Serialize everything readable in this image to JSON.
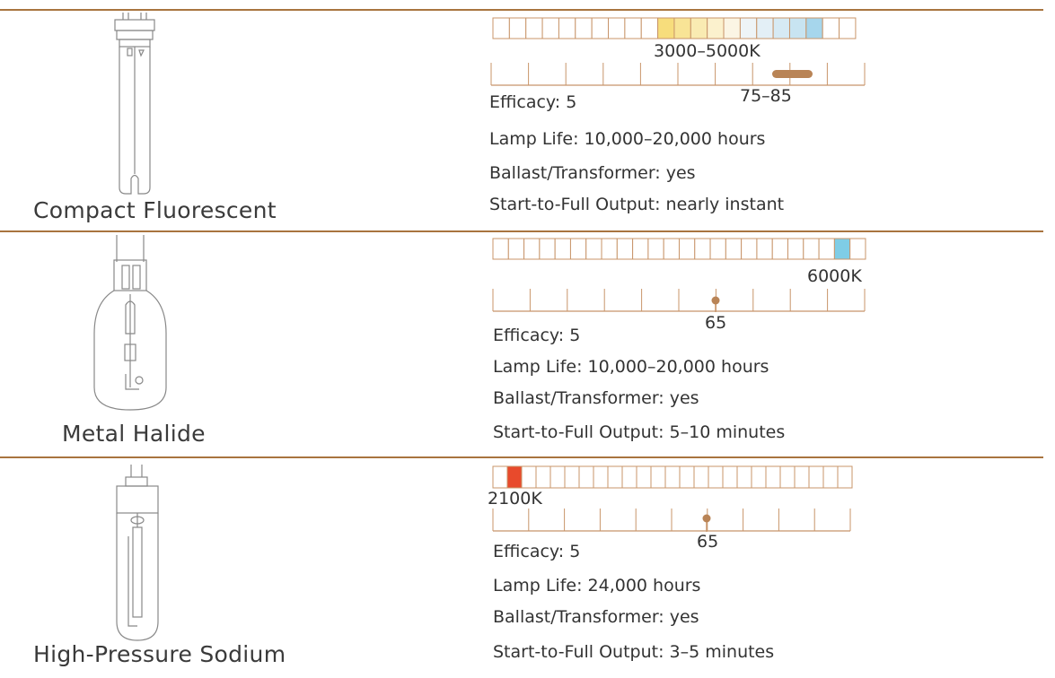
{
  "lamps": [
    {
      "name": "Compact Fluorescent",
      "temp_label": "3000–5000K",
      "temp_cells": [
        {
          "index": 10,
          "color": "#f7dd7c"
        },
        {
          "index": 11,
          "color": "#f8e496"
        },
        {
          "index": 12,
          "color": "#f9ebb2"
        },
        {
          "index": 13,
          "color": "#fbf1cd"
        },
        {
          "index": 14,
          "color": "#fbf5e4"
        },
        {
          "index": 15,
          "color": "#eef4f7"
        },
        {
          "index": 16,
          "color": "#e3eff6"
        },
        {
          "index": 17,
          "color": "#d6eaf4"
        },
        {
          "index": 18,
          "color": "#c8e4f1"
        },
        {
          "index": 19,
          "color": "#a6d6ec"
        }
      ],
      "cri_label": "75–85",
      "efficacy": "Efficacy: 5",
      "lamp_life": "Lamp Life: 10,000–20,000 hours",
      "ballast": "Ballast/Transformer: yes",
      "start": "Start-to-Full Output: nearly instant"
    },
    {
      "name": "Metal Halide",
      "temp_label": "6000K",
      "temp_cells": [
        {
          "index": 22,
          "color": "#7fcde6"
        }
      ],
      "cri_label": "65",
      "efficacy": "Efficacy: 5",
      "lamp_life": "Lamp Life: 10,000–20,000 hours",
      "ballast": "Ballast/Transformer: yes",
      "start": "Start-to-Full Output: 5–10 minutes"
    },
    {
      "name": "High-Pressure Sodium",
      "temp_label": "2100K",
      "temp_cells": [
        {
          "index": 1,
          "color": "#e84a2c"
        }
      ],
      "cri_label": "65",
      "efficacy": "Efficacy: 5",
      "lamp_life": "Lamp Life: 24,000 hours",
      "ballast": "Ballast/Transformer: yes",
      "start": "Start-to-Full Output: 3–5 minutes"
    }
  ],
  "colors": {
    "accent": "#a8743f",
    "tick": "#c8956a",
    "marker": "#b98456"
  }
}
